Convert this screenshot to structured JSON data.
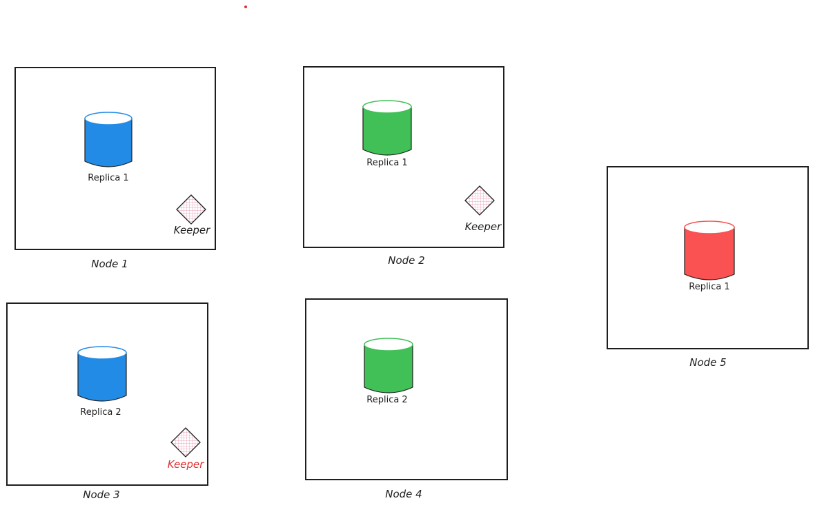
{
  "colors": {
    "replica_blue": "#228be6",
    "replica_green": "#40c057",
    "replica_red": "#fa5252",
    "keeper_fill": "#f7d0de",
    "keeper_alert": "#e03131",
    "stroke": "#1e1e1e",
    "dot": "#e03131"
  },
  "nodes": [
    {
      "label": "Node 1",
      "replica": {
        "label": "Replica 1",
        "color": "blue"
      },
      "keeper": {
        "label": "Keeper",
        "alert": false
      }
    },
    {
      "label": "Node 2",
      "replica": {
        "label": "Replica 1",
        "color": "green"
      },
      "keeper": {
        "label": "Keeper",
        "alert": false
      }
    },
    {
      "label": "Node 3",
      "replica": {
        "label": "Replica 2",
        "color": "blue"
      },
      "keeper": {
        "label": "Keeper",
        "alert": true
      }
    },
    {
      "label": "Node 4",
      "replica": {
        "label": "Replica 2",
        "color": "green"
      }
    },
    {
      "label": "Node 5",
      "replica": {
        "label": "Replica 1",
        "color": "red"
      }
    }
  ]
}
